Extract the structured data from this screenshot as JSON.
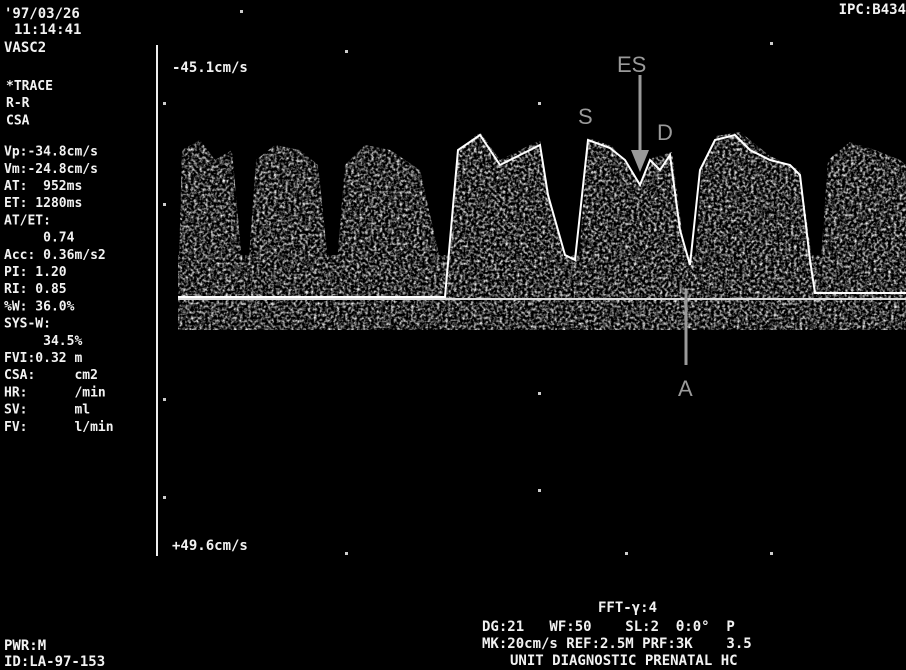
{
  "header": {
    "date": "'97/03/26",
    "time": "11:14:41",
    "preset": "VASC2",
    "right": "IPC:B434"
  },
  "panel": {
    "lines": [
      "*TRACE",
      "R-R",
      "CSA",
      "Vp:-34.8cm/s",
      "Vm:-24.8cm/s",
      "AT:  952ms",
      "ET: 1280ms",
      "AT/ET:",
      "     0.74",
      "Acc: 0.36m/s2",
      "PI: 1.20",
      "RI: 0.85",
      "%W: 36.0%",
      "SYS-W:",
      "     34.5%",
      "FVI:0.32 m",
      "CSA:     cm2",
      "HR:      /min",
      "SV:      ml",
      "FV:      l/min"
    ]
  },
  "scale": {
    "top": "-45.1cm/s",
    "bottom": "+49.6cm/s"
  },
  "annotations": {
    "es": "ES",
    "s": "S",
    "d": "D",
    "a": "A"
  },
  "footer": {
    "fft": "FFT-γ:4",
    "line1": "DG:21   WF:50    SL:2  θ:0°  P",
    "line2": "MK:20cm/s REF:2.5M PRF:3K    3.5",
    "line3": "UNIT DIAGNOSTIC PRENATAL HC",
    "mode": "PWR:M",
    "id": "ID:LA-97-153"
  }
}
